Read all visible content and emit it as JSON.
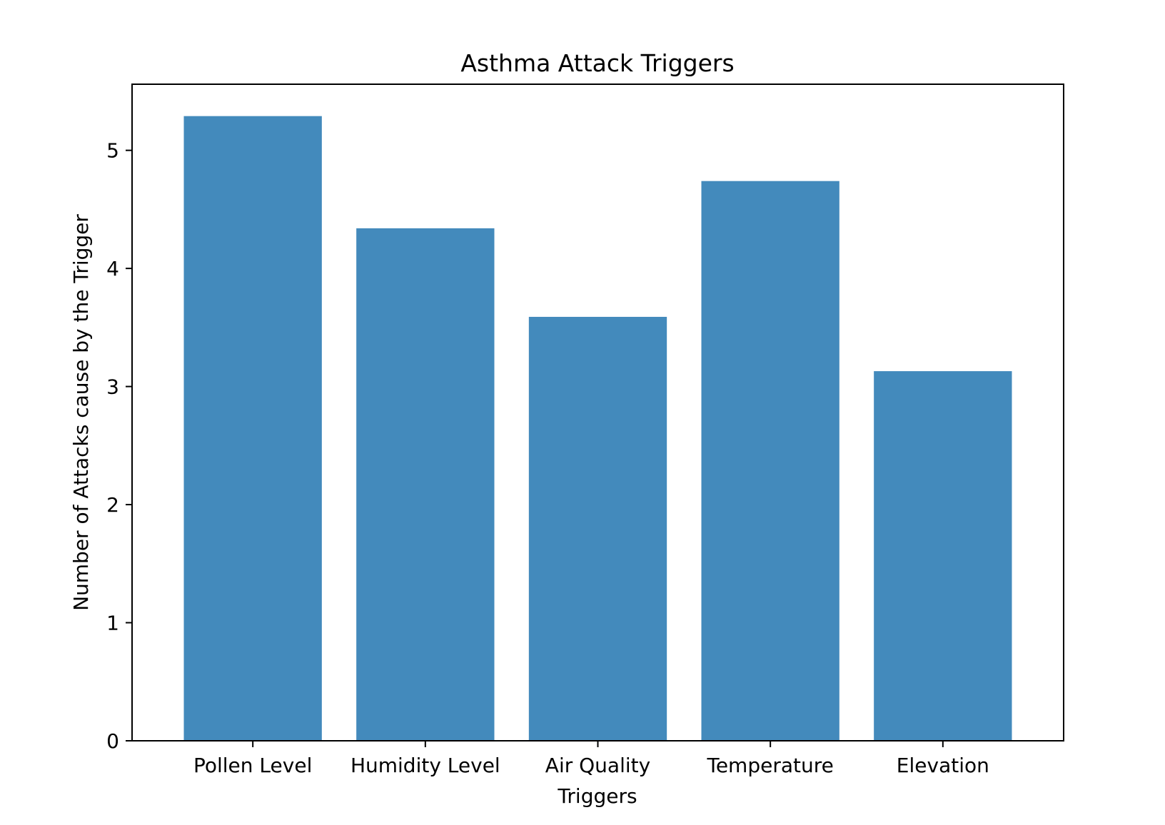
{
  "chart_data": {
    "type": "bar",
    "title": "Asthma Attack Triggers",
    "xlabel": "Triggers",
    "ylabel": "Number of Attacks cause by the Trigger",
    "categories": [
      "Pollen Level",
      "Humidity Level",
      "Air Quality",
      "Temperature",
      "Elevation"
    ],
    "values": [
      5.29,
      4.34,
      3.59,
      4.74,
      3.13
    ],
    "ylim": [
      0,
      5.56
    ],
    "yticks": [
      0,
      1,
      2,
      3,
      4,
      5
    ],
    "bar_color": "#438ABC",
    "grid": false,
    "legend": "none"
  }
}
